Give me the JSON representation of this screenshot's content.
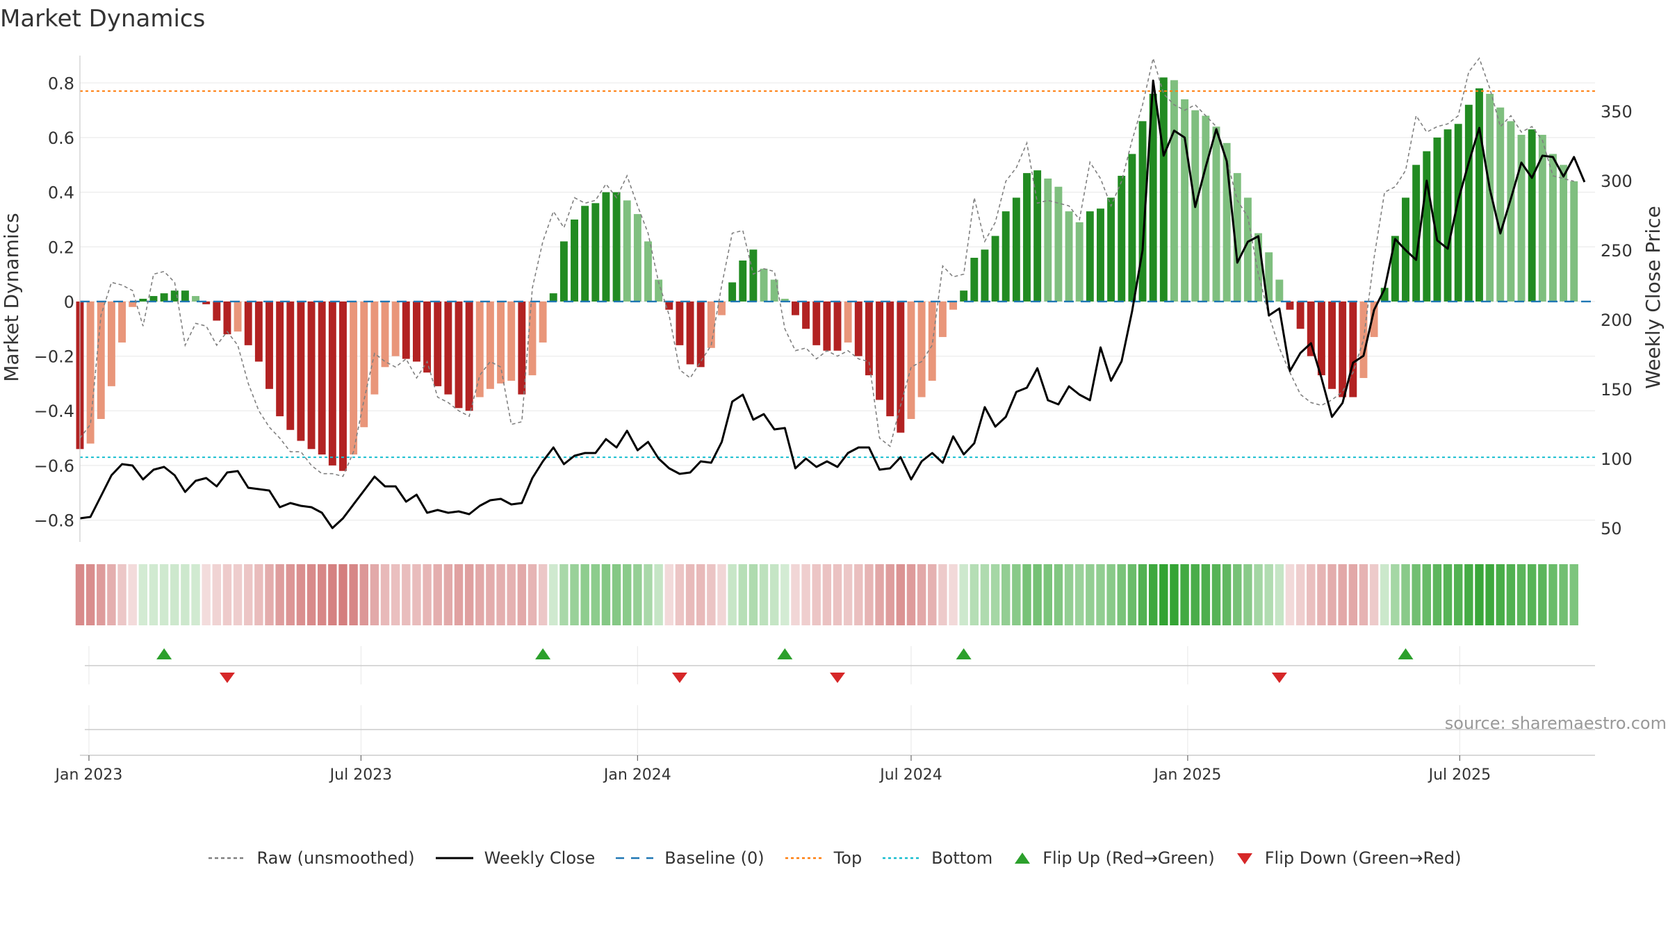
{
  "chart_data": {
    "type": "bar",
    "title": "Market Dynamics",
    "source": "source: sharemaestro.com",
    "ylabel_left": "Market Dynamics",
    "ylabel_right": "Weekly Close Price",
    "ylim_left": [
      -0.88,
      0.9
    ],
    "ylim_right": [
      40,
      390
    ],
    "yticks_left": [
      -0.8,
      -0.6,
      -0.4,
      -0.2,
      0,
      0.2,
      0.4,
      0.6,
      0.8
    ],
    "yticks_left_labels": [
      "−0.8",
      "−0.6",
      "−0.4",
      "−0.2",
      "0",
      "0.2",
      "0.4",
      "0.6",
      "0.8"
    ],
    "yticks_right": [
      50,
      100,
      150,
      200,
      250,
      300,
      350
    ],
    "x_start": "2022-12-26",
    "x_end": "2025-09-29",
    "xticks": [
      {
        "date": "2023-01-01",
        "label": "Jan 2023"
      },
      {
        "date": "2023-07-01",
        "label": "Jul 2023"
      },
      {
        "date": "2024-01-01",
        "label": "Jan 2024"
      },
      {
        "date": "2024-07-01",
        "label": "Jul 2024"
      },
      {
        "date": "2025-01-01",
        "label": "Jan 2025"
      },
      {
        "date": "2025-07-01",
        "label": "Jul 2025"
      }
    ],
    "top_level": 0.77,
    "bottom_level": -0.57,
    "baseline": 0,
    "grid": true,
    "legend_position": "bottom",
    "colors": {
      "strong_green": "#228b22",
      "weak_green": "#7fbf7f",
      "strong_red": "#b22222",
      "weak_red": "#e9967a",
      "close_line": "#000000",
      "raw_line": "#808080",
      "baseline": "#1f77b4",
      "top": "#ff7f0e",
      "bottom": "#17becf",
      "flip_up": "#2ca02c",
      "flip_down": "#d62728"
    },
    "series": [
      {
        "name": "Market Dynamics (smoothed)",
        "values": [
          -0.54,
          -0.52,
          -0.43,
          -0.31,
          -0.15,
          -0.02,
          0.01,
          0.02,
          0.03,
          0.04,
          0.04,
          0.02,
          -0.01,
          -0.07,
          -0.12,
          -0.11,
          -0.16,
          -0.22,
          -0.32,
          -0.42,
          -0.47,
          -0.51,
          -0.54,
          -0.56,
          -0.6,
          -0.62,
          -0.56,
          -0.46,
          -0.34,
          -0.24,
          -0.2,
          -0.21,
          -0.22,
          -0.26,
          -0.31,
          -0.34,
          -0.39,
          -0.4,
          -0.35,
          -0.32,
          -0.3,
          -0.29,
          -0.34,
          -0.27,
          -0.15,
          0.03,
          0.22,
          0.3,
          0.35,
          0.36,
          0.4,
          0.4,
          0.37,
          0.32,
          0.22,
          0.08,
          -0.03,
          -0.16,
          -0.23,
          -0.24,
          -0.17,
          -0.05,
          0.07,
          0.15,
          0.19,
          0.12,
          0.08,
          0.01,
          -0.05,
          -0.1,
          -0.16,
          -0.18,
          -0.18,
          -0.15,
          -0.2,
          -0.27,
          -0.36,
          -0.42,
          -0.48,
          -0.43,
          -0.35,
          -0.29,
          -0.13,
          -0.03,
          0.04,
          0.16,
          0.19,
          0.24,
          0.33,
          0.38,
          0.47,
          0.48,
          0.45,
          0.42,
          0.33,
          0.29,
          0.33,
          0.34,
          0.38,
          0.46,
          0.54,
          0.66,
          0.76,
          0.82,
          0.81,
          0.74,
          0.7,
          0.68,
          0.64,
          0.58,
          0.47,
          0.38,
          0.25,
          0.18,
          0.08,
          -0.03,
          -0.1,
          -0.2,
          -0.27,
          -0.32,
          -0.35,
          -0.35,
          -0.28,
          -0.13,
          0.05,
          0.24,
          0.38,
          0.5,
          0.55,
          0.6,
          0.63,
          0.65,
          0.72,
          0.78,
          0.76,
          0.71,
          0.66,
          0.61,
          0.63,
          0.61,
          0.54,
          0.5,
          0.44
        ]
      },
      {
        "name": "Weekly Close",
        "values": [
          57,
          58,
          73,
          88,
          96,
          95,
          85,
          92,
          94,
          88,
          76,
          84,
          86,
          80,
          90,
          91,
          79,
          78,
          77,
          65,
          68,
          66,
          65,
          61,
          50,
          57,
          67,
          77,
          87,
          80,
          80,
          69,
          74,
          61,
          63,
          61,
          62,
          60,
          66,
          70,
          71,
          67,
          68,
          86,
          98,
          108,
          96,
          102,
          104,
          104,
          114,
          108,
          120,
          106,
          112,
          100,
          93,
          89,
          90,
          98,
          97,
          112,
          141,
          146,
          128,
          132,
          121,
          122,
          93,
          100,
          94,
          98,
          94,
          104,
          108,
          108,
          92,
          93,
          101,
          85,
          98,
          104,
          97,
          116,
          103,
          111,
          137,
          123,
          130,
          148,
          151,
          165,
          142,
          139,
          152,
          146,
          142,
          180,
          156,
          170,
          206,
          250,
          372,
          318,
          336,
          331,
          281,
          310,
          337,
          314,
          241,
          256,
          260,
          203,
          208,
          163,
          176,
          183,
          158,
          130,
          140,
          169,
          174,
          207,
          222,
          258,
          250,
          243,
          300,
          257,
          251,
          286,
          313,
          338,
          294,
          262,
          287,
          313,
          302,
          318,
          317,
          303,
          317,
          299
        ]
      },
      {
        "name": "Raw (unsmoothed)",
        "values": [
          -0.5,
          -0.45,
          -0.05,
          0.07,
          0.06,
          0.04,
          -0.09,
          0.1,
          0.11,
          0.07,
          -0.16,
          -0.08,
          -0.09,
          -0.16,
          -0.11,
          -0.16,
          -0.3,
          -0.4,
          -0.46,
          -0.5,
          -0.55,
          -0.55,
          -0.6,
          -0.63,
          -0.63,
          -0.64,
          -0.55,
          -0.36,
          -0.19,
          -0.22,
          -0.24,
          -0.21,
          -0.28,
          -0.22,
          -0.35,
          -0.37,
          -0.4,
          -0.42,
          -0.27,
          -0.22,
          -0.24,
          -0.45,
          -0.44,
          0.05,
          0.22,
          0.33,
          0.27,
          0.38,
          0.36,
          0.37,
          0.43,
          0.38,
          0.46,
          0.35,
          0.25,
          0.07,
          -0.05,
          -0.25,
          -0.28,
          -0.22,
          -0.16,
          0.06,
          0.25,
          0.26,
          0.1,
          0.12,
          0.11,
          -0.1,
          -0.18,
          -0.17,
          -0.21,
          -0.18,
          -0.2,
          -0.18,
          -0.21,
          -0.22,
          -0.5,
          -0.53,
          -0.38,
          -0.24,
          -0.22,
          -0.16,
          0.13,
          0.09,
          0.1,
          0.38,
          0.22,
          0.29,
          0.44,
          0.49,
          0.58,
          0.36,
          0.37,
          0.36,
          0.35,
          0.3,
          0.51,
          0.45,
          0.35,
          0.44,
          0.59,
          0.72,
          0.89,
          0.76,
          0.72,
          0.7,
          0.72,
          0.68,
          0.64,
          0.52,
          0.37,
          0.31,
          0.1,
          -0.05,
          -0.17,
          -0.26,
          -0.34,
          -0.37,
          -0.38,
          -0.36,
          -0.33,
          -0.26,
          -0.14,
          0.16,
          0.4,
          0.42,
          0.48,
          0.68,
          0.62,
          0.64,
          0.65,
          0.68,
          0.84,
          0.89,
          0.78,
          0.64,
          0.68,
          0.62,
          0.64,
          0.59,
          0.46,
          0.45,
          0.44
        ]
      }
    ],
    "flip_up": [
      "2023-02-20",
      "2023-10-30",
      "2024-04-08",
      "2024-08-05",
      "2025-05-26"
    ],
    "flip_down": [
      "2023-04-03",
      "2024-01-29",
      "2024-05-13",
      "2025-03-03"
    ],
    "legend": [
      {
        "label": "Raw (unsmoothed)",
        "kind": "dashed-line",
        "color": "#808080"
      },
      {
        "label": "Weekly Close",
        "kind": "solid-line",
        "color": "#000000"
      },
      {
        "label": "Baseline (0)",
        "kind": "dash-line",
        "color": "#1f77b4"
      },
      {
        "label": "Top",
        "kind": "dotted-line",
        "color": "#ff7f0e"
      },
      {
        "label": "Bottom",
        "kind": "dotted-line",
        "color": "#17becf"
      },
      {
        "label": "Flip Up (Red→Green)",
        "kind": "triangle-up",
        "color": "#2ca02c"
      },
      {
        "label": "Flip Down (Green→Red)",
        "kind": "triangle-down",
        "color": "#d62728"
      }
    ]
  }
}
